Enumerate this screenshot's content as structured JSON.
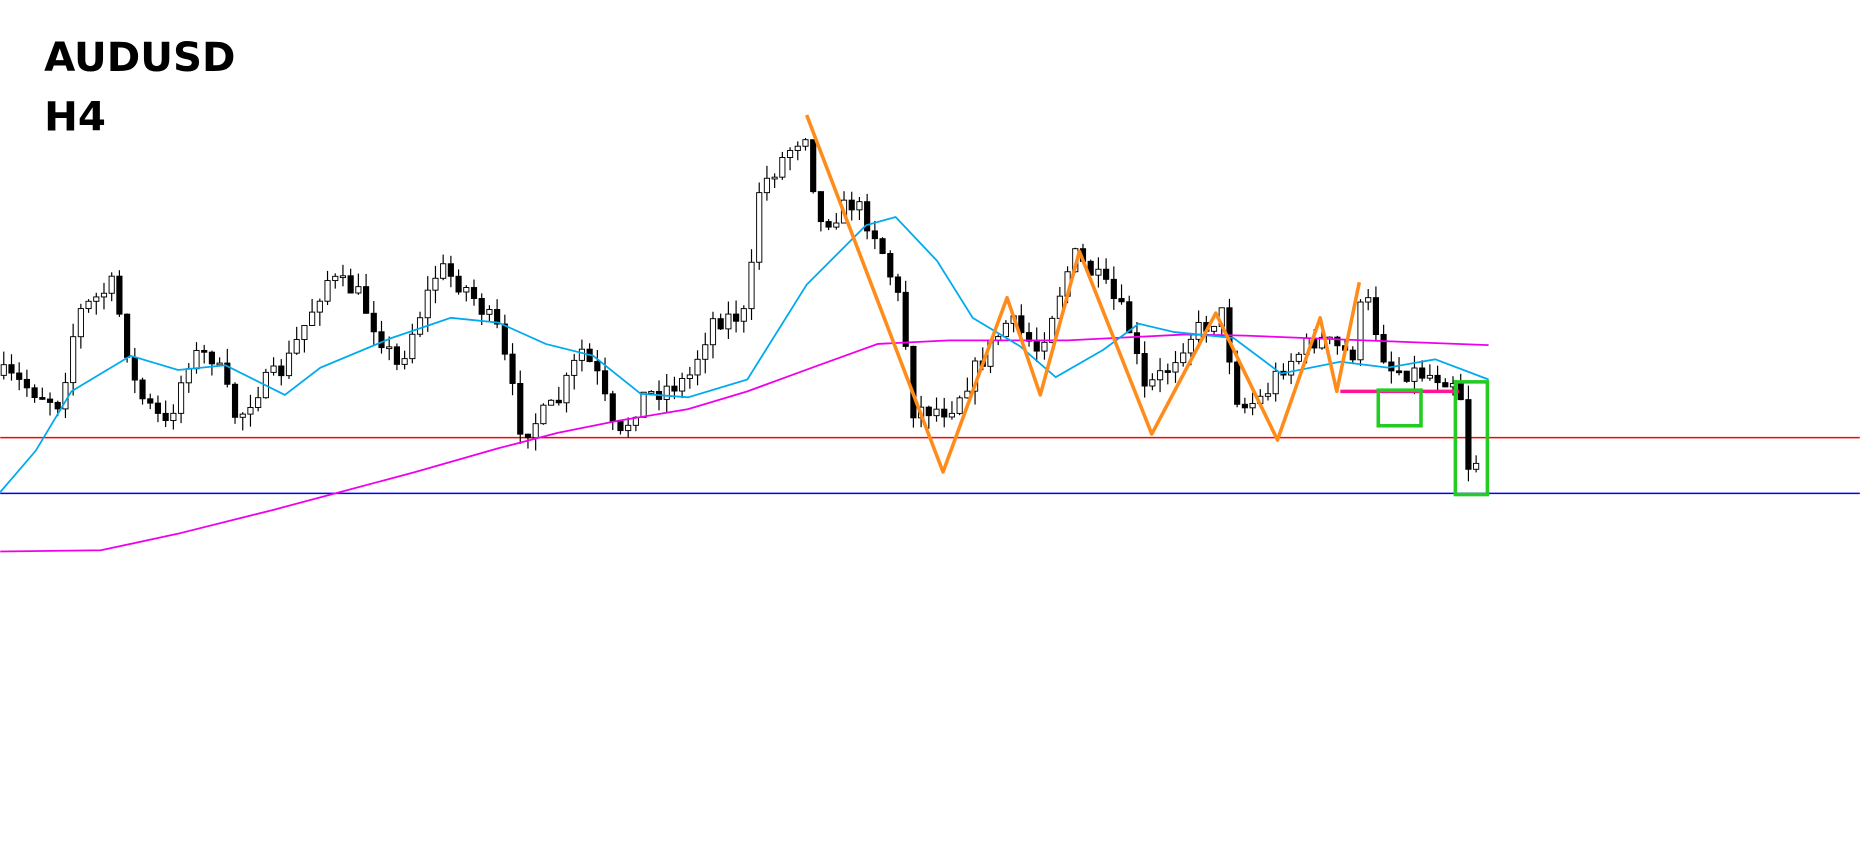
{
  "symbol": "AUDUSD",
  "timeframe": "H4"
}
